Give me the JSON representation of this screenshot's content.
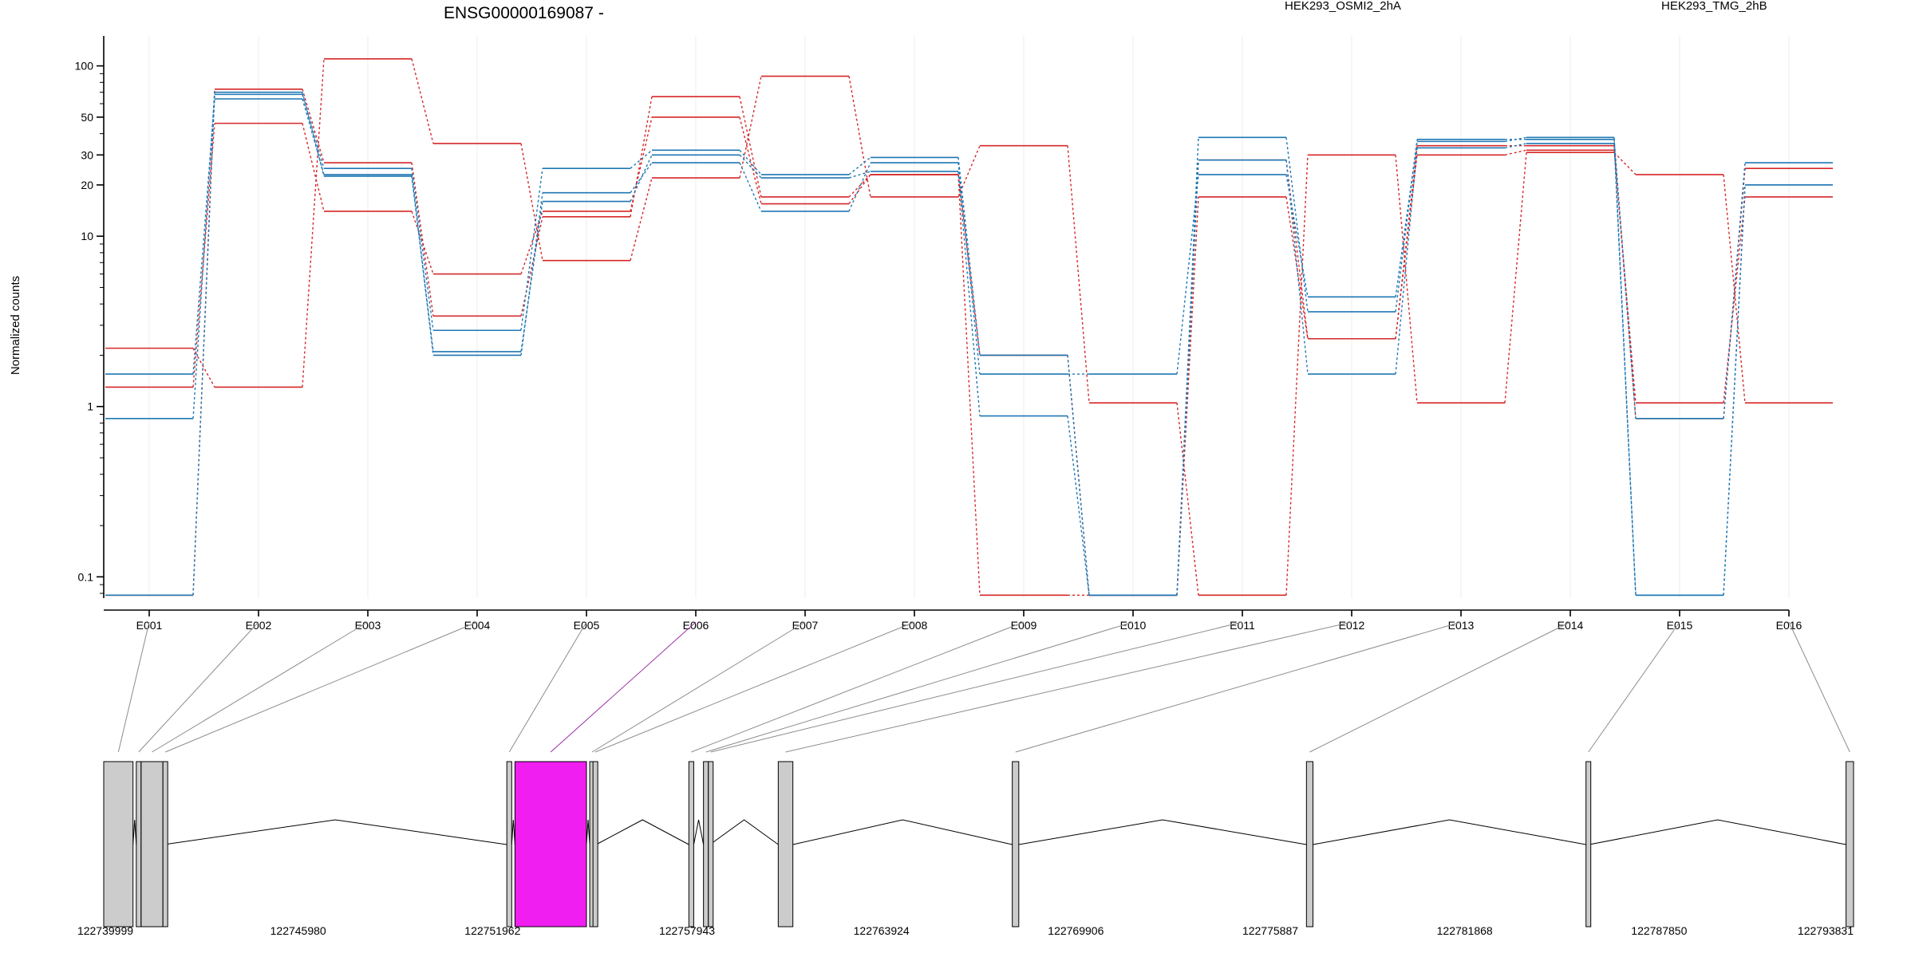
{
  "chart_data": {
    "type": "line",
    "title": "ENSG00000169087 -",
    "ylabel": "Normalized counts",
    "xlabel": "",
    "yscale": "log",
    "ylim": [
      0.075,
      150
    ],
    "yticks": [
      0.1,
      1,
      10,
      20,
      30,
      50,
      100
    ],
    "ytick_labels": [
      "0.1",
      "1",
      "10",
      "20",
      "30",
      "50",
      "100"
    ],
    "grid": "vertical lines at exon ticks",
    "legend_position": "top",
    "categories": [
      "E001",
      "E002",
      "E003",
      "E004",
      "E005",
      "E006",
      "E007",
      "E008",
      "E009",
      "E010",
      "E011",
      "E012",
      "E013",
      "E014",
      "E015",
      "E016"
    ],
    "groups": [
      {
        "name": "HEK293_OSMI2_2hA",
        "color": "#d62728"
      },
      {
        "name": "HEK293_TMG_2hB",
        "color": "#1f77b4"
      }
    ],
    "series": [
      {
        "group": "HEK293_OSMI2_2hA",
        "values": [
          2.2,
          1.3,
          110,
          35,
          7.2,
          22,
          87,
          17,
          34,
          1.05,
          0.078,
          30,
          1.05,
          31,
          23,
          1.05
        ]
      },
      {
        "group": "HEK293_OSMI2_2hA",
        "values": [
          1.3,
          46,
          14,
          6,
          14,
          50,
          15.5,
          23,
          0.078,
          0.078,
          17,
          2.5,
          30,
          32,
          1.05,
          17
        ]
      },
      {
        "group": "HEK293_OSMI2_2hA",
        "values": [
          0.078,
          73,
          27,
          3.4,
          13,
          66,
          17,
          23,
          2.0,
          0.078,
          28,
          2.5,
          34,
          34,
          0.85,
          25
        ]
      },
      {
        "group": "HEK293_TMG_2hB",
        "values": [
          0.078,
          68,
          25,
          2.8,
          25,
          32,
          23,
          29,
          2.0,
          0.078,
          38,
          3.6,
          37,
          37,
          0.85,
          27
        ]
      },
      {
        "group": "HEK293_TMG_2hB",
        "values": [
          1.55,
          64,
          23,
          2.0,
          18,
          27,
          14,
          27,
          1.55,
          1.55,
          23,
          4.4,
          36,
          38,
          0.078,
          20
        ]
      },
      {
        "group": "HEK293_TMG_2hB",
        "values": [
          0.85,
          70,
          22.5,
          2.1,
          16,
          30,
          22,
          24,
          0.88,
          0.078,
          28,
          1.55,
          33,
          35,
          0.078,
          20
        ]
      }
    ],
    "gene_model": {
      "coordinate_labels": [
        "122739999",
        "122745980",
        "122751962",
        "122757943",
        "122763924",
        "122769906",
        "122775887",
        "122781868",
        "122787850",
        "122793831"
      ],
      "exon_colors": {
        "default": "#cccccc",
        "highlighted": "#f01ef0"
      },
      "highlighted_exon": "E006",
      "exons": [
        {
          "id": "E001",
          "start": 122739999,
          "end": 122740900
        },
        {
          "id": "E002",
          "start": 122741000,
          "end": 122741100
        },
        {
          "id": "E003",
          "start": 122741150,
          "end": 122741820
        },
        {
          "id": "E004",
          "start": 122741820,
          "end": 122741850
        },
        {
          "id": "E005",
          "start": 122752400,
          "end": 122752550
        },
        {
          "id": "E006",
          "start": 122752650,
          "end": 122754850
        },
        {
          "id": "E007",
          "start": 122754950,
          "end": 122755050
        },
        {
          "id": "E008",
          "start": 122755050,
          "end": 122755150
        },
        {
          "id": "E009",
          "start": 122758000,
          "end": 122758150
        },
        {
          "id": "E010",
          "start": 122758450,
          "end": 122758600
        },
        {
          "id": "E011",
          "start": 122758600,
          "end": 122758650
        },
        {
          "id": "E012",
          "start": 122760750,
          "end": 122761200
        },
        {
          "id": "E013",
          "start": 122767950,
          "end": 122768150
        },
        {
          "id": "E014",
          "start": 122777000,
          "end": 122777200
        },
        {
          "id": "E015",
          "start": 122785600,
          "end": 122785700
        },
        {
          "id": "E016",
          "start": 122793600,
          "end": 122793831
        }
      ],
      "introns": [
        {
          "from": 122739999,
          "to": 122740900,
          "peak_mid": true
        },
        {
          "from": 122740900,
          "to": 122741000
        },
        {
          "from": 122741850,
          "to": 122752400
        },
        {
          "from": 122752550,
          "to": 122752650
        },
        {
          "from": 122754850,
          "to": 122754950
        },
        {
          "from": 122755150,
          "to": 122758000
        },
        {
          "from": 122758150,
          "to": 122758450
        },
        {
          "from": 122758650,
          "to": 122760750
        },
        {
          "from": 122761200,
          "to": 122767950
        },
        {
          "from": 122768150,
          "to": 122777000
        },
        {
          "from": 122777200,
          "to": 122785600
        },
        {
          "from": 122785700,
          "to": 122793600
        }
      ]
    }
  }
}
